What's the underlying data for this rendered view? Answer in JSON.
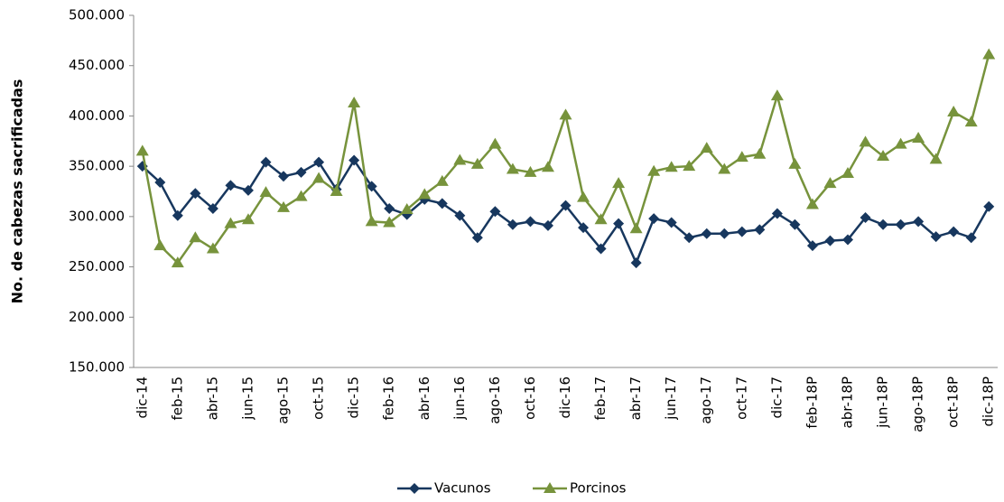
{
  "chart_data": {
    "type": "line",
    "y_label": "No. de cabezas sacrificadas",
    "categories": [
      "dic-14",
      null,
      "feb-15",
      null,
      "abr-15",
      null,
      "jun-15",
      null,
      "ago-15",
      null,
      "oct-15",
      null,
      "dic-15",
      null,
      "feb-16",
      null,
      "abr-16",
      null,
      "jun-16",
      null,
      "ago-16",
      null,
      "oct-16",
      null,
      "dic-16",
      null,
      "feb-17",
      null,
      "abr-17",
      null,
      "jun-17",
      null,
      "ago-17",
      null,
      "oct-17",
      null,
      "dic-17",
      null,
      "feb-18P",
      null,
      "abr-18P",
      null,
      "jun-18P",
      null,
      "ago-18P",
      null,
      "oct-18P",
      null,
      "dic-18P"
    ],
    "series": [
      {
        "name": "Vacunos",
        "color": "#17375e",
        "marker": "diamond",
        "values": [
          350000,
          334000,
          301000,
          323000,
          308000,
          331000,
          326000,
          354000,
          340000,
          344000,
          354000,
          327000,
          356000,
          330000,
          308000,
          302000,
          317000,
          313000,
          301000,
          279000,
          305000,
          292000,
          295000,
          291000,
          311000,
          289000,
          268000,
          293000,
          254000,
          298000,
          294000,
          279000,
          283000,
          283000,
          285000,
          287000,
          303000,
          292000,
          271000,
          276000,
          277000,
          299000,
          292000,
          292000,
          295000,
          280000,
          285000,
          279000,
          310000
        ]
      },
      {
        "name": "Porcinos",
        "color": "#77933c",
        "marker": "triangle",
        "values": [
          365000,
          271000,
          254000,
          279000,
          268000,
          293000,
          297000,
          324000,
          309000,
          320000,
          338000,
          325000,
          413000,
          295000,
          294000,
          307000,
          322000,
          335000,
          356000,
          352000,
          372000,
          347000,
          344000,
          349000,
          401000,
          319000,
          297000,
          333000,
          288000,
          345000,
          349000,
          350000,
          368000,
          347000,
          359000,
          362000,
          420000,
          352000,
          312000,
          333000,
          343000,
          374000,
          360000,
          372000,
          378000,
          357000,
          404000,
          394000,
          461000
        ]
      }
    ],
    "ylim": [
      150000,
      500000
    ],
    "yticks": [
      {
        "value": 150000,
        "label": "150.000"
      },
      {
        "value": 200000,
        "label": "200.000"
      },
      {
        "value": 250000,
        "label": "250.000"
      },
      {
        "value": 300000,
        "label": "300.000"
      },
      {
        "value": 350000,
        "label": "350.000"
      },
      {
        "value": 400000,
        "label": "400.000"
      },
      {
        "value": 450000,
        "label": "450.000"
      },
      {
        "value": 500000,
        "label": "500.000"
      }
    ],
    "grid": false,
    "legend": "bottom"
  }
}
